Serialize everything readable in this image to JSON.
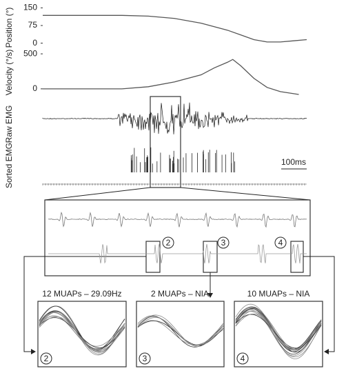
{
  "chart_data": [
    {
      "type": "line",
      "y_label": "Position (°)",
      "x": [
        0,
        30,
        40,
        50,
        60,
        70,
        75,
        80,
        85,
        90,
        95,
        100
      ],
      "values": [
        118,
        118,
        115,
        105,
        85,
        55,
        35,
        15,
        5,
        5,
        10,
        15
      ],
      "color": "#555",
      "xlim": [
        0,
        100
      ],
      "ylim": [
        -10,
        160
      ],
      "yticks": [
        150,
        75,
        0
      ]
    },
    {
      "type": "line",
      "y_label": "Velocity (°/s)",
      "x": [
        0,
        30,
        40,
        50,
        60,
        65,
        70,
        72,
        75,
        80,
        85,
        90,
        97
      ],
      "values": [
        0,
        0,
        30,
        100,
        200,
        300,
        380,
        420,
        330,
        150,
        20,
        -40,
        -80
      ],
      "color": "#555",
      "xlim": [
        0,
        100
      ],
      "ylim": [
        -90,
        560
      ],
      "yticks": [
        500,
        0
      ]
    }
  ],
  "emg": {
    "raw_label": "Raw EMG",
    "sorted_label": "Sorted EMG",
    "scale_label": "100ms"
  },
  "zoom": {
    "markers": [
      "2",
      "3",
      "4"
    ]
  },
  "panels": [
    {
      "title": "12 MUAPs – 29.09Hz",
      "marker": "2"
    },
    {
      "title": "2 MUAPs – NIA",
      "marker": "3"
    },
    {
      "title": "10 MUAPs – NIA",
      "marker": "4"
    }
  ]
}
